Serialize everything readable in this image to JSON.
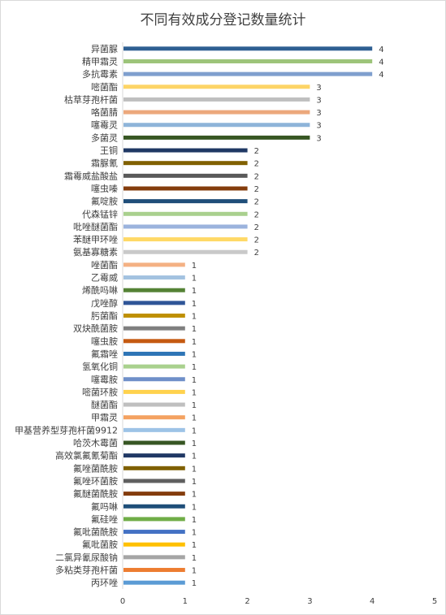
{
  "chart_data": {
    "type": "bar",
    "orientation": "horizontal",
    "title": "不同有效成分登记数量统计",
    "xlim": [
      0,
      5
    ],
    "x_ticks": [
      "0",
      "1",
      "2",
      "3",
      "4",
      "5"
    ],
    "grid": false,
    "categories": [
      "异菌脲",
      "精甲霜灵",
      "多抗霉素",
      "嘧菌酯",
      "枯草芽孢杆菌",
      "咯菌腈",
      "噻霉灵",
      "多菌灵",
      "王铜",
      "霜脲氰",
      "霜霉威盐酸盐",
      "噻虫嗪",
      "氟啶胺",
      "代森锰锌",
      "吡唑醚菌酯",
      "苯醚甲环唑",
      "氨基寡糖素",
      "唑菌酯",
      "乙霉威",
      "烯酰吗啉",
      "戊唑醇",
      "肟菌酯",
      "双炔酰菌胺",
      "噻虫胺",
      "氟霜唑",
      "氢氧化铜",
      "噻霉胺",
      "嘧菌环胺",
      "醚菌酯",
      "甲霜灵",
      "甲基营养型芽孢杆菌9912",
      "哈茨木霉菌",
      "高效氯氟氰菊酯",
      "氟唑菌酰胺",
      "氟唑环菌胺",
      "氟醚菌酰胺",
      "氟吗啉",
      "氟硅唑",
      "氟吡菌酰胺",
      "氟吡菌胺",
      "二氯异氰尿酸钠",
      "多粘类芽孢杆菌",
      "丙环唑"
    ],
    "values": [
      4,
      4,
      4,
      3,
      3,
      3,
      3,
      3,
      2,
      2,
      2,
      2,
      2,
      2,
      2,
      2,
      2,
      1,
      1,
      1,
      1,
      1,
      1,
      1,
      1,
      1,
      1,
      1,
      1,
      1,
      1,
      1,
      1,
      1,
      1,
      1,
      1,
      1,
      1,
      1,
      1,
      1,
      1
    ],
    "colors": [
      "#2e5f92",
      "#9dc47a",
      "#7f9fce",
      "#fdd466",
      "#bfbfbf",
      "#eca87c",
      "#8eb4d9",
      "#375623",
      "#1f3864",
      "#806000",
      "#595959",
      "#843c0c",
      "#1f4e79",
      "#a9d08e",
      "#9bb3dd",
      "#ffd966",
      "#c9c9c9",
      "#f4b183",
      "#a3c2e0",
      "#548235",
      "#2f5597",
      "#bf9000",
      "#7f7f7f",
      "#c55a11",
      "#2e75b6",
      "#a9d18e",
      "#6f8fc9",
      "#ffd24d",
      "#bfbfbf",
      "#f4a261",
      "#9dc3e6",
      "#375623",
      "#203864",
      "#7f6000",
      "#5f5f5f",
      "#843c0c",
      "#1f4e79",
      "#70ad47",
      "#4472c4",
      "#ffc000",
      "#a5a5a5",
      "#ed7d31",
      "#5b9bd5"
    ]
  }
}
